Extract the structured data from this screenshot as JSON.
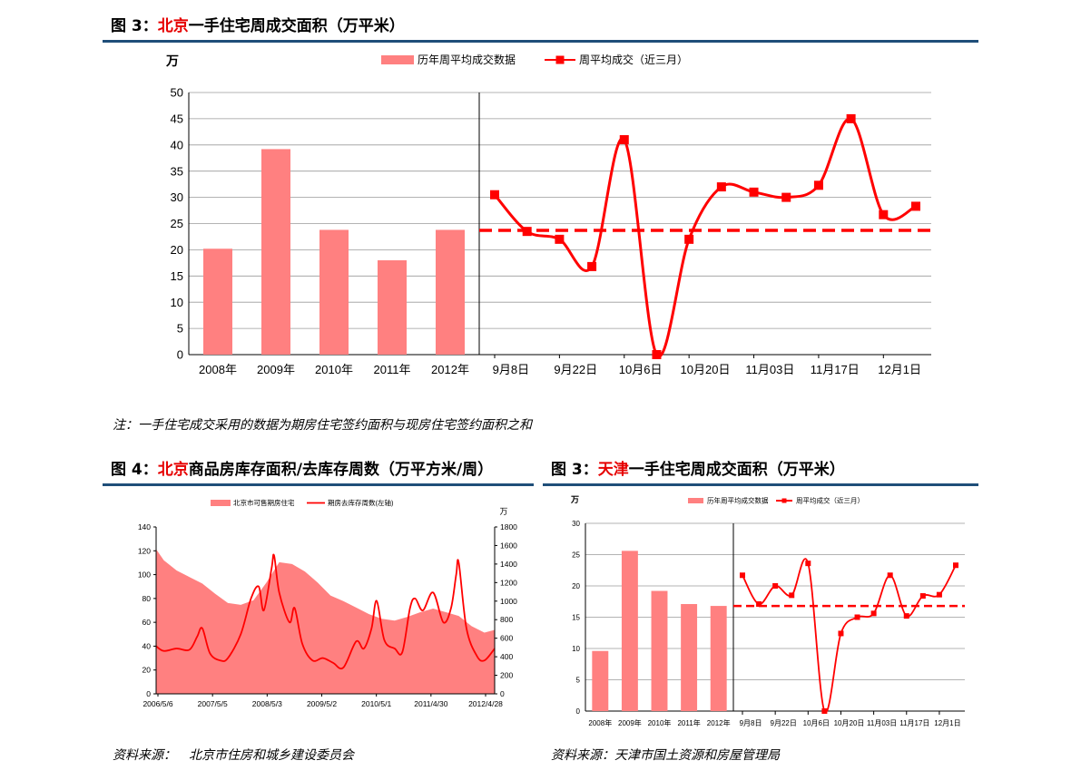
{
  "figures": {
    "top": {
      "prefix": "图 3：",
      "highlight": "北京",
      "rest": "一手住宅周成交面积（万平米）"
    },
    "bottom_left": {
      "prefix": "图 4：",
      "highlight": "北京",
      "rest": "商品房库存面积/去库存周数（万平方米/周）"
    },
    "bottom_right": {
      "prefix": "图 3：",
      "highlight": "天津",
      "rest": "一手住宅周成交面积（万平米）"
    }
  },
  "notes": {
    "top_note": "注：一手住宅成交采用的数据为期房住宅签约面积与现房住宅签约面积之和",
    "source_left": "资料来源：　北京市住房和城乡建设委员会",
    "source_right": "资料来源：天津市国土资源和房屋管理局"
  },
  "colors": {
    "bar": "#ff8080",
    "line": "#ff0000",
    "title_rule": "#1f4e79",
    "highlight": "#e60000",
    "grid": "#9a9a9a"
  },
  "chart_data": [
    {
      "id": "beijing",
      "type": "bar+line",
      "unit_label": "万",
      "legend": {
        "bar": "历年周平均成交数据",
        "line": "周平均成交（近三月）"
      },
      "legend_placement": "top",
      "ylim": [
        0,
        50
      ],
      "yticks": [
        0,
        5,
        10,
        15,
        20,
        25,
        30,
        35,
        40,
        45,
        50
      ],
      "bar_categories": [
        "2008年",
        "2009年",
        "2010年",
        "2011年",
        "2012年"
      ],
      "bar_values": [
        20.2,
        39.2,
        23.8,
        18.0,
        23.8
      ],
      "line_tick_labels": [
        "9月8日",
        "9月22日",
        "10月6日",
        "10月20日",
        "11月03日",
        "11月17日",
        "12月1日"
      ],
      "line_values": [
        30.5,
        23.5,
        22.0,
        16.8,
        41.0,
        0.0,
        22.0,
        32.0,
        31.0,
        30.0,
        32.3,
        45.0,
        26.7,
        28.3
      ],
      "reference_line": 23.7,
      "grid": true
    },
    {
      "id": "inventory",
      "type": "area+line",
      "unit_label": "万",
      "legend": {
        "area": "北京市可售期房住宅",
        "line": "期房去库存周数(左轴)"
      },
      "legend_placement": "top",
      "left_ylim": [
        0,
        140
      ],
      "left_yticks": [
        0,
        20,
        40,
        60,
        80,
        100,
        120,
        140
      ],
      "right_ylim": [
        0,
        1800
      ],
      "right_yticks": [
        0,
        200,
        400,
        600,
        800,
        1000,
        1200,
        1400,
        1600,
        1800
      ],
      "x_tick_labels": [
        "2006/5/6",
        "2007/5/5",
        "2008/5/3",
        "2009/5/2",
        "2010/5/1",
        "2011/4/30",
        "2012/4/28"
      ],
      "x_range": [
        2006.35,
        2012.95
      ],
      "area_points": [
        [
          2006.35,
          1560
        ],
        [
          2006.5,
          1440
        ],
        [
          2006.75,
          1330
        ],
        [
          2007.0,
          1260
        ],
        [
          2007.25,
          1190
        ],
        [
          2007.5,
          1080
        ],
        [
          2007.75,
          980
        ],
        [
          2008.0,
          960
        ],
        [
          2008.25,
          1010
        ],
        [
          2008.5,
          1200
        ],
        [
          2008.75,
          1420
        ],
        [
          2009.0,
          1400
        ],
        [
          2009.25,
          1320
        ],
        [
          2009.5,
          1200
        ],
        [
          2009.75,
          1060
        ],
        [
          2010.0,
          1000
        ],
        [
          2010.25,
          930
        ],
        [
          2010.5,
          860
        ],
        [
          2010.75,
          810
        ],
        [
          2011.0,
          790
        ],
        [
          2011.25,
          830
        ],
        [
          2011.5,
          880
        ],
        [
          2011.75,
          920
        ],
        [
          2012.0,
          880
        ],
        [
          2012.25,
          840
        ],
        [
          2012.5,
          730
        ],
        [
          2012.75,
          660
        ],
        [
          2012.95,
          690
        ]
      ],
      "line_points": [
        [
          2006.35,
          40
        ],
        [
          2006.5,
          36
        ],
        [
          2006.75,
          38
        ],
        [
          2007.0,
          37
        ],
        [
          2007.15,
          48
        ],
        [
          2007.25,
          55
        ],
        [
          2007.4,
          34
        ],
        [
          2007.6,
          28
        ],
        [
          2007.75,
          30
        ],
        [
          2008.0,
          50
        ],
        [
          2008.2,
          80
        ],
        [
          2008.35,
          90
        ],
        [
          2008.45,
          70
        ],
        [
          2008.6,
          105
        ],
        [
          2008.65,
          116
        ],
        [
          2008.75,
          85
        ],
        [
          2008.95,
          60
        ],
        [
          2009.05,
          72
        ],
        [
          2009.2,
          42
        ],
        [
          2009.4,
          28
        ],
        [
          2009.6,
          30
        ],
        [
          2009.8,
          26
        ],
        [
          2010.0,
          22
        ],
        [
          2010.25,
          44
        ],
        [
          2010.4,
          38
        ],
        [
          2010.55,
          55
        ],
        [
          2010.65,
          78
        ],
        [
          2010.8,
          45
        ],
        [
          2011.0,
          38
        ],
        [
          2011.15,
          35
        ],
        [
          2011.3,
          72
        ],
        [
          2011.4,
          80
        ],
        [
          2011.55,
          70
        ],
        [
          2011.75,
          85
        ],
        [
          2011.95,
          60
        ],
        [
          2012.1,
          72
        ],
        [
          2012.2,
          100
        ],
        [
          2012.25,
          110
        ],
        [
          2012.4,
          55
        ],
        [
          2012.6,
          32
        ],
        [
          2012.75,
          28
        ],
        [
          2012.95,
          38
        ]
      ],
      "grid": false
    },
    {
      "id": "tianjin",
      "type": "bar+line",
      "unit_label": "万",
      "legend": {
        "bar": "历年周平均成交数据",
        "line": "周平均成交（近三月）"
      },
      "legend_placement": "top",
      "ylim": [
        0,
        30
      ],
      "yticks": [
        0,
        5,
        10,
        15,
        20,
        25,
        30
      ],
      "bar_categories": [
        "2008年",
        "2009年",
        "2010年",
        "2011年",
        "2012年"
      ],
      "bar_values": [
        9.6,
        25.6,
        19.2,
        17.1,
        16.8
      ],
      "line_tick_labels": [
        "9月8日",
        "9月22日",
        "10月6日",
        "10月20日",
        "11月03日",
        "11月17日",
        "12月1日"
      ],
      "line_values": [
        21.7,
        17.1,
        20.0,
        18.5,
        23.6,
        0.0,
        12.4,
        15.0,
        15.6,
        21.7,
        15.2,
        18.4,
        18.6,
        23.3
      ],
      "reference_line": 16.8,
      "grid": true
    }
  ]
}
